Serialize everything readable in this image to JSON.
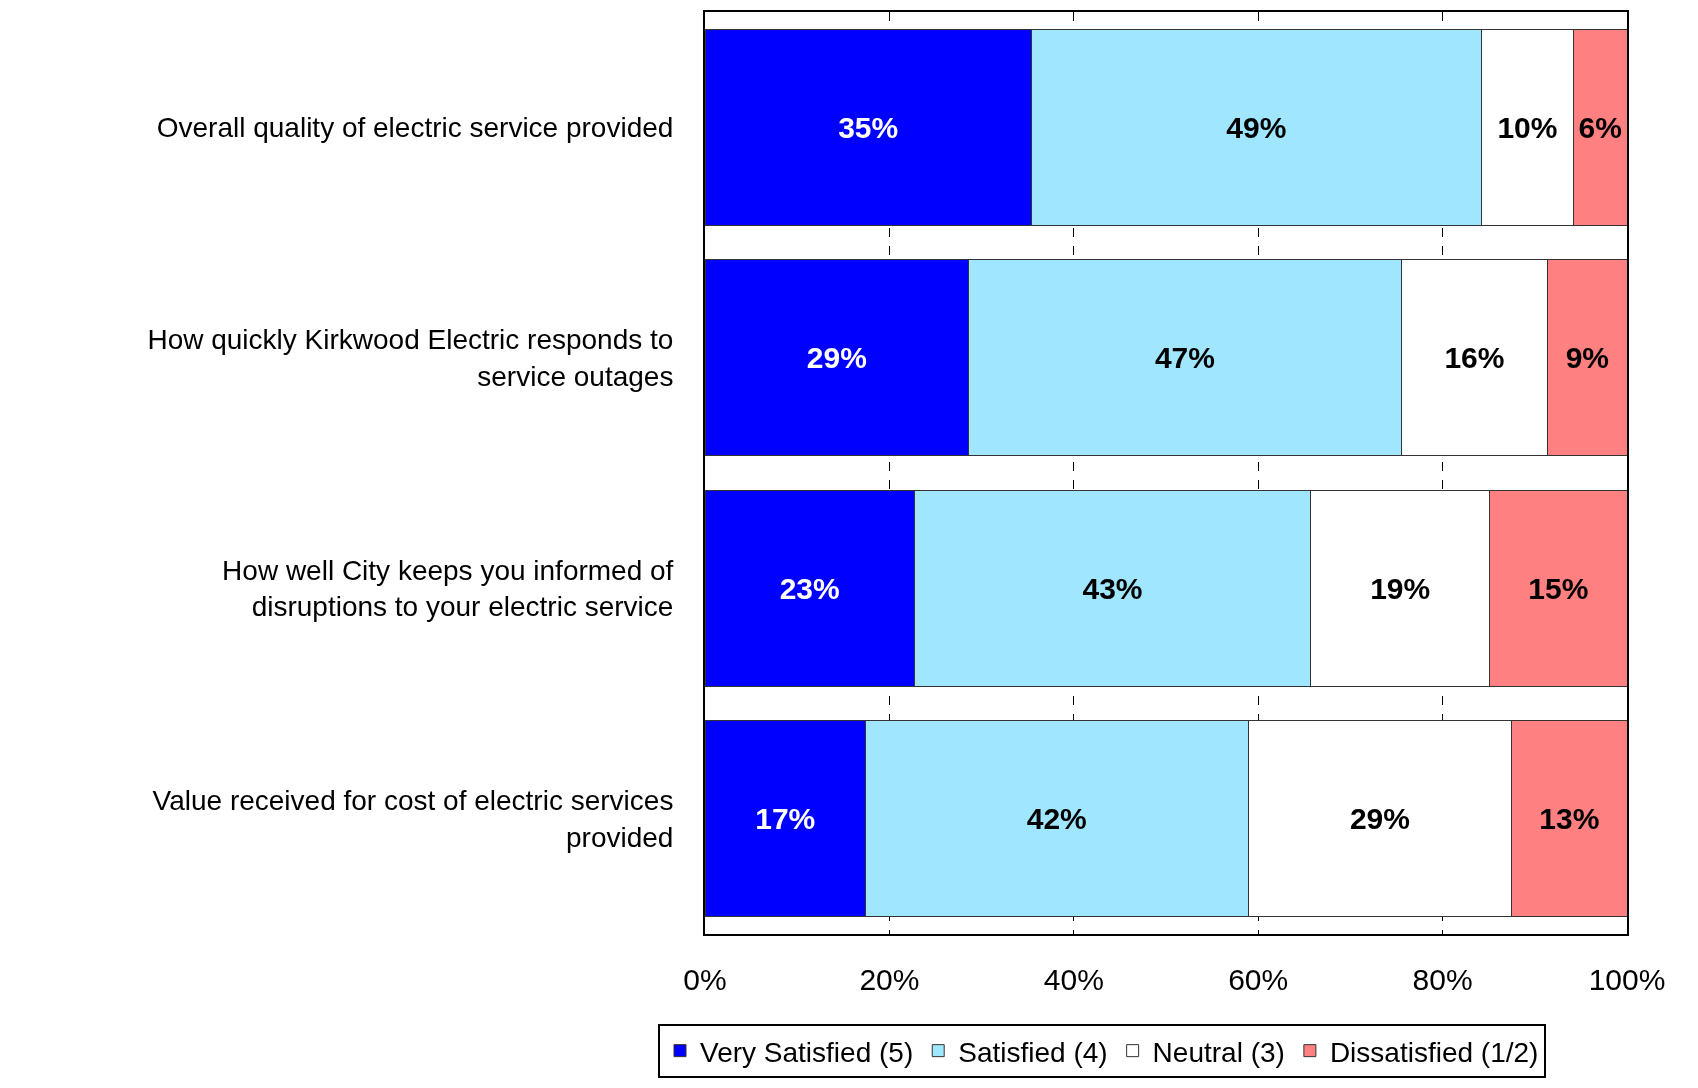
{
  "chart_data": {
    "type": "bar",
    "orientation": "horizontal",
    "stacked": true,
    "categories": [
      "Overall quality of electric service provided",
      "How quickly Kirkwood Electric responds to service outages",
      "How well City keeps you informed of disruptions to your electric service",
      "Value received for cost of electric services provided"
    ],
    "series": [
      {
        "name": "Very Satisfied (5)",
        "color": "#0000ff",
        "values": [
          35.4,
          28.6,
          22.7,
          17.4
        ],
        "value_labels": [
          "35%",
          "29%",
          "23%",
          "17%"
        ]
      },
      {
        "name": "Satisfied (4)",
        "color": "#a0e6ff",
        "values": [
          48.8,
          46.9,
          43.0,
          41.5
        ],
        "value_labels": [
          "49%",
          "47%",
          "43%",
          "42%"
        ]
      },
      {
        "name": "Neutral (3)",
        "color": "#ffffff",
        "values": [
          10.0,
          15.9,
          19.4,
          28.6
        ],
        "value_labels": [
          "10%",
          "16%",
          "19%",
          "29%"
        ]
      },
      {
        "name": "Dissatisfied (1/2)",
        "color": "#ff8080",
        "values": [
          5.8,
          8.6,
          14.9,
          12.5
        ],
        "value_labels": [
          "6%",
          "9%",
          "15%",
          "13%"
        ]
      }
    ],
    "xlim": [
      0,
      100
    ],
    "xticks": [
      {
        "value": 0,
        "label": "0%"
      },
      {
        "value": 20,
        "label": "20%"
      },
      {
        "value": 40,
        "label": "40%"
      },
      {
        "value": 60,
        "label": "60%"
      },
      {
        "value": 80,
        "label": "80%"
      },
      {
        "value": 100,
        "label": "100%"
      }
    ],
    "grid": "x",
    "legend": "bottom"
  }
}
